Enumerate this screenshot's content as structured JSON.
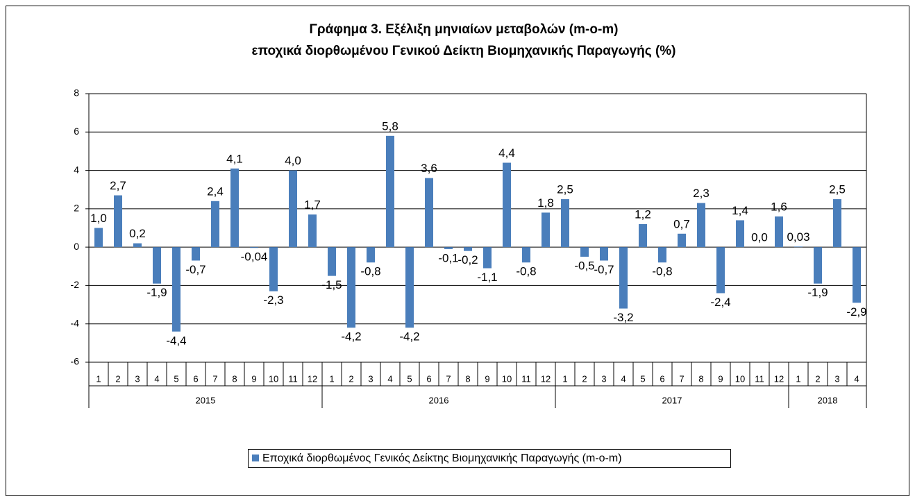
{
  "chart_data": {
    "type": "bar",
    "title": [
      "Γράφημα 3. Εξέλιξη μηνιαίων μεταβολών (m-o-m)",
      "εποχικά διορθωμένου Γενικού Δείκτη Βιομηχανικής Παραγωγής (%)"
    ],
    "categories": [
      "1",
      "2",
      "3",
      "4",
      "5",
      "6",
      "7",
      "8",
      "9",
      "10",
      "11",
      "12",
      "1",
      "2",
      "3",
      "4",
      "5",
      "6",
      "7",
      "8",
      "9",
      "10",
      "11",
      "12",
      "1",
      "2",
      "3",
      "4",
      "5",
      "6",
      "7",
      "8",
      "9",
      "10",
      "11",
      "12",
      "1",
      "2",
      "3",
      "4"
    ],
    "years": [
      "2015",
      "2016",
      "2017",
      "2018"
    ],
    "series": [
      {
        "name": "Εποχικά διορθωμένος Γενικός Δείκτης Βιομηχανικής Παραγωγής (m-o-m)",
        "color": "#4a7ebb",
        "values": [
          1.0,
          2.7,
          0.2,
          -1.9,
          -4.4,
          -0.7,
          2.4,
          4.1,
          -0.04,
          -2.3,
          4.0,
          1.7,
          -1.5,
          -4.2,
          -0.8,
          5.8,
          -4.2,
          3.6,
          -0.1,
          -0.2,
          -1.1,
          4.4,
          -0.8,
          1.8,
          2.5,
          -0.5,
          -0.7,
          -3.2,
          1.2,
          -0.8,
          0.7,
          2.3,
          -2.4,
          1.4,
          0.0,
          1.6,
          0.03,
          -1.9,
          2.5,
          -2.9
        ],
        "value_labels": [
          "1,0",
          "2,7",
          "0,2",
          "-1,9",
          "-4,4",
          "-0,7",
          "2,4",
          "4,1",
          "-0,04",
          "-2,3",
          "4,0",
          "1,7",
          "-1,5",
          "-4,2",
          "-0,8",
          "5,8",
          "-4,2",
          "3,6",
          "-0,1",
          "-0,2",
          "-1,1",
          "4,4",
          "-0,8",
          "1,8",
          "2,5",
          "-0,5",
          "-0,7",
          "-3,2",
          "1,2",
          "-0,8",
          "0,7",
          "2,3",
          "-2,4",
          "1,4",
          "0,0",
          "1,6",
          "0,03",
          "-1,9",
          "2,5",
          "-2,9"
        ]
      }
    ],
    "ylim": [
      -6,
      8
    ],
    "yticks": [
      -6,
      -4,
      -2,
      0,
      2,
      4,
      6,
      8
    ],
    "grid": true,
    "legend": "bottom"
  }
}
